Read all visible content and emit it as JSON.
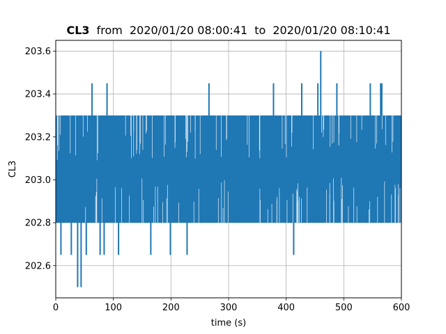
{
  "chart_data": {
    "type": "line",
    "title": {
      "channel": "CL3",
      "from_word": "from",
      "start": "2020/01/20 08:00:41",
      "to_word": "to",
      "end": "2020/01/20 08:10:41"
    },
    "xlabel": "time (s)",
    "ylabel": "CL3",
    "xlim": [
      0,
      600
    ],
    "ylim": [
      202.45,
      203.65
    ],
    "xticks": [
      0,
      100,
      200,
      300,
      400,
      500,
      600
    ],
    "xtick_labels": [
      "0",
      "100",
      "200",
      "300",
      "400",
      "500",
      "600"
    ],
    "yticks": [
      202.6,
      202.8,
      203.0,
      203.2,
      203.4,
      203.6
    ],
    "ytick_labels": [
      "202.6",
      "202.8",
      "203.0",
      "203.2",
      "203.4",
      "203.6"
    ],
    "grid": true,
    "series": [
      {
        "color": "#1f77b4",
        "band": {
          "x": [
            0,
            600
          ],
          "low": 202.8,
          "high": 203.3,
          "typical": 203.0
        },
        "spikes_up": [
          {
            "x": 63,
            "y": 203.45
          },
          {
            "x": 89,
            "y": 203.45
          },
          {
            "x": 266,
            "y": 203.45
          },
          {
            "x": 378,
            "y": 203.45
          },
          {
            "x": 427,
            "y": 203.45
          },
          {
            "x": 455,
            "y": 203.45
          },
          {
            "x": 460,
            "y": 203.6
          },
          {
            "x": 488,
            "y": 203.45
          },
          {
            "x": 546,
            "y": 203.45
          },
          {
            "x": 564,
            "y": 203.45
          },
          {
            "x": 566,
            "y": 203.45
          }
        ],
        "spikes_down": [
          {
            "x": 9,
            "y": 202.65
          },
          {
            "x": 27,
            "y": 202.65
          },
          {
            "x": 38,
            "y": 202.5
          },
          {
            "x": 44,
            "y": 202.5
          },
          {
            "x": 53,
            "y": 202.65
          },
          {
            "x": 77,
            "y": 202.65
          },
          {
            "x": 84,
            "y": 202.65
          },
          {
            "x": 109,
            "y": 202.65
          },
          {
            "x": 165,
            "y": 202.65
          },
          {
            "x": 199,
            "y": 202.65
          },
          {
            "x": 228,
            "y": 202.65
          },
          {
            "x": 413,
            "y": 202.65
          }
        ]
      }
    ]
  }
}
